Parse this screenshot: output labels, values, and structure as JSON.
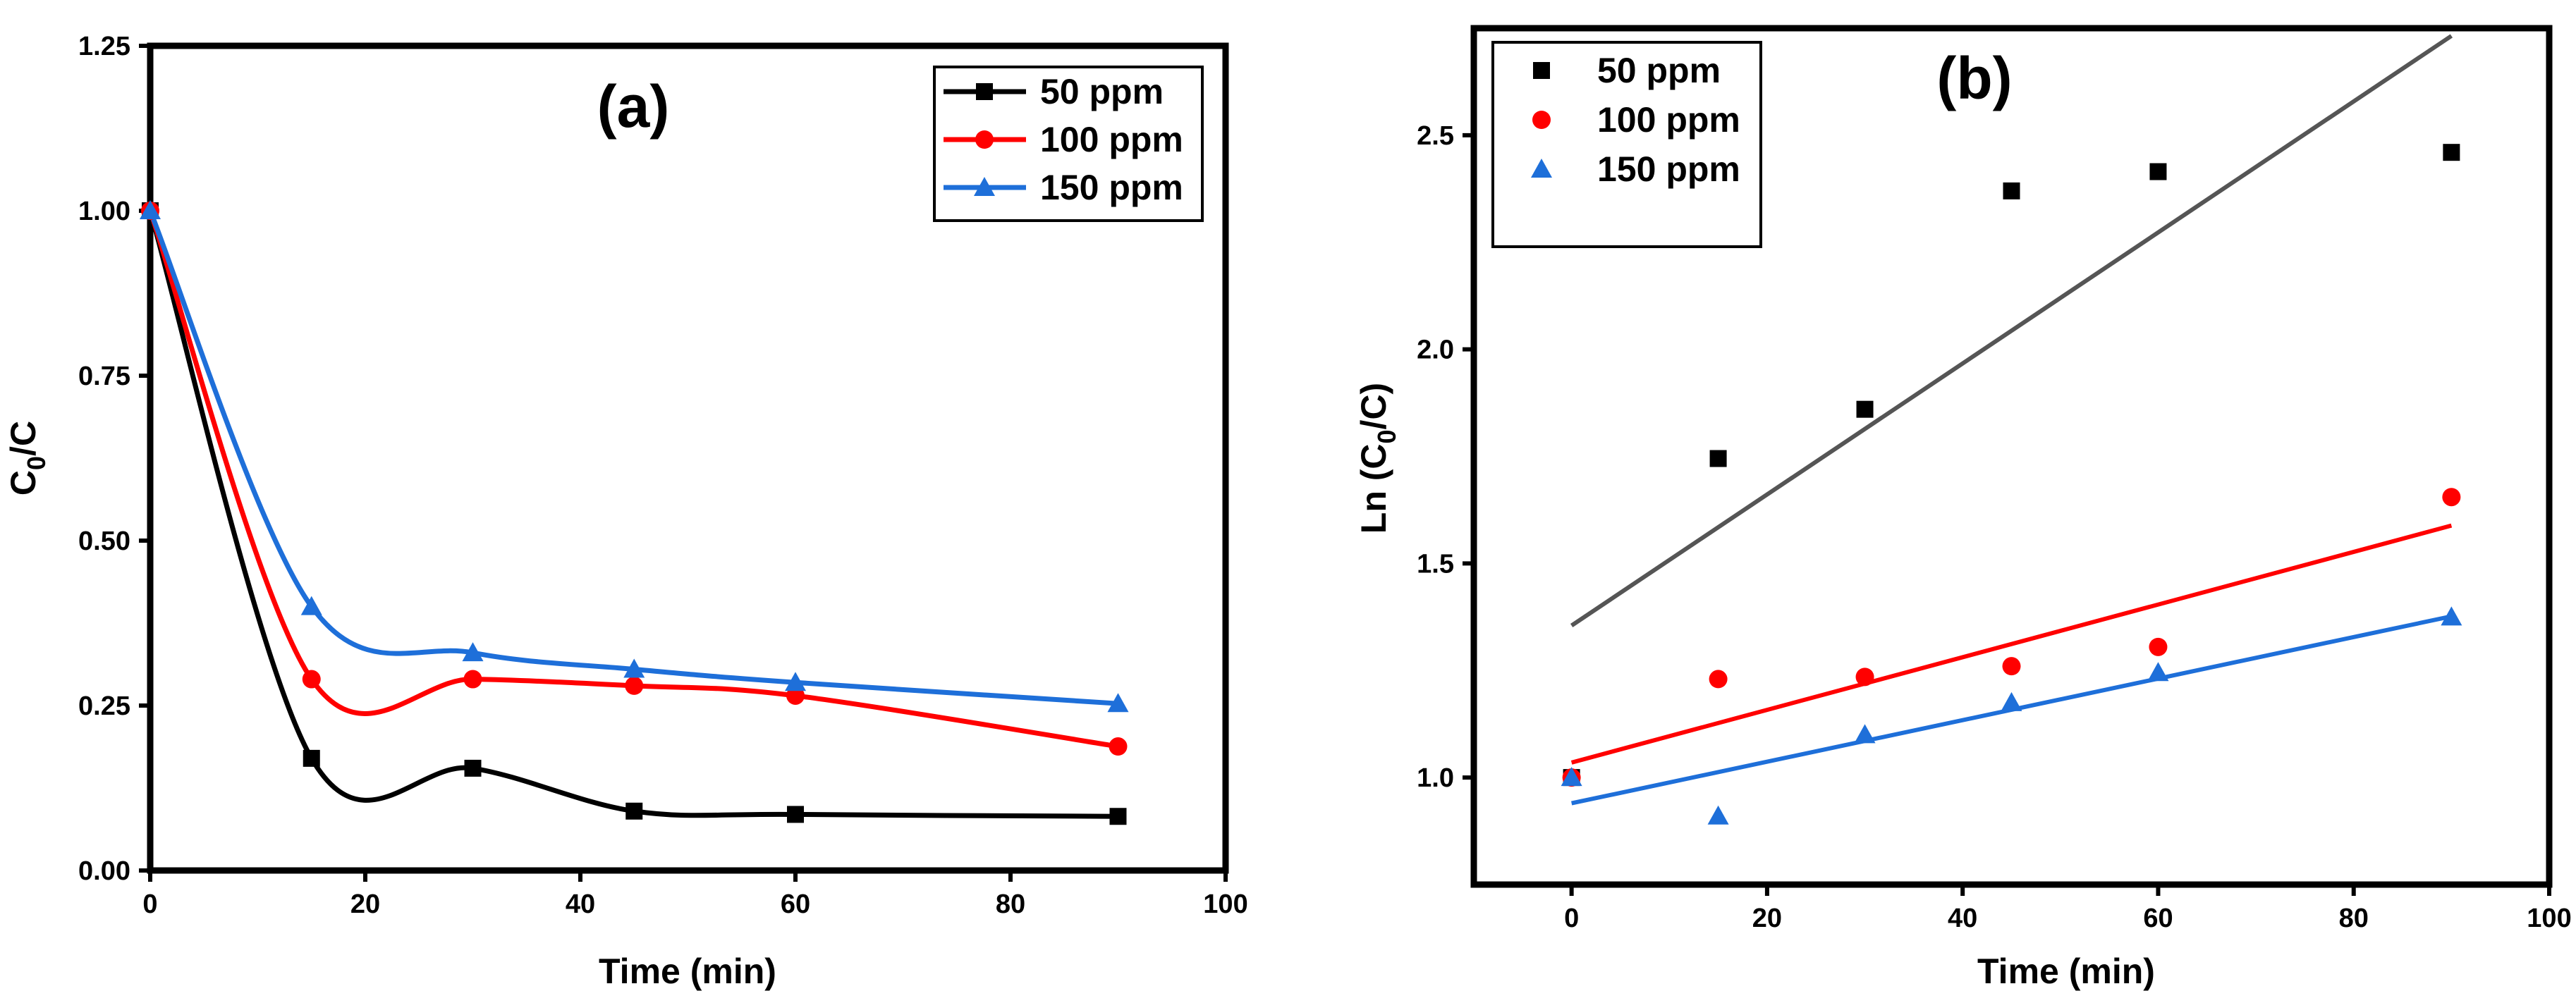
{
  "chart_data": [
    {
      "type": "line",
      "panel_label": "(a)",
      "xlabel": "Time (min)",
      "ylabel": "C0/C",
      "xlim": [
        0,
        100
      ],
      "ylim": [
        0,
        1.25
      ],
      "xticks": [
        0,
        20,
        40,
        60,
        80,
        100
      ],
      "yticks": [
        0.0,
        0.25,
        0.5,
        0.75,
        1.0,
        1.25
      ],
      "xtick_labels": [
        "0",
        "20",
        "40",
        "60",
        "80",
        "100"
      ],
      "ytick_labels": [
        "0.00",
        "0.25",
        "0.50",
        "0.75",
        "1.00",
        "1.25"
      ],
      "legend_position": "top-right",
      "x": [
        0,
        15,
        30,
        45,
        60,
        90
      ],
      "series": [
        {
          "name": "50 ppm",
          "color": "#000000",
          "marker": "square",
          "values": [
            1.0,
            0.17,
            0.155,
            0.09,
            0.085,
            0.082
          ]
        },
        {
          "name": "100 ppm",
          "color": "#ff0000",
          "marker": "circle",
          "values": [
            1.0,
            0.29,
            0.29,
            0.28,
            0.265,
            0.188
          ]
        },
        {
          "name": "150 ppm",
          "color": "#1e6fd9",
          "marker": "triangle",
          "values": [
            1.0,
            0.4,
            0.33,
            0.305,
            0.285,
            0.253
          ]
        }
      ]
    },
    {
      "type": "scatter",
      "panel_label": "(b)",
      "xlabel": "Time (min)",
      "ylabel": "Ln (C0/C)",
      "xlim": [
        -10,
        100
      ],
      "ylim": [
        0.75,
        2.75
      ],
      "xticks": [
        0,
        20,
        40,
        60,
        80,
        100
      ],
      "yticks": [
        1.0,
        1.5,
        2.0,
        2.5
      ],
      "xtick_labels": [
        "0",
        "20",
        "40",
        "60",
        "80",
        "100"
      ],
      "ytick_labels": [
        "1.0",
        "1.5",
        "2.0",
        "2.5"
      ],
      "legend_position": "top-left",
      "x": [
        0,
        15,
        30,
        45,
        60,
        90
      ],
      "series": [
        {
          "name": "50 ppm",
          "color": "#000000",
          "fit_color": "#555555",
          "marker": "square",
          "values": [
            1.0,
            1.745,
            1.86,
            2.37,
            2.415,
            2.46
          ],
          "fit": [
            1.355,
            0.0153
          ]
        },
        {
          "name": "100 ppm",
          "color": "#ff0000",
          "fit_color": "#ff0000",
          "marker": "circle",
          "values": [
            1.0,
            1.23,
            1.235,
            1.26,
            1.305,
            1.655
          ],
          "fit": [
            1.035,
            0.00615
          ]
        },
        {
          "name": "150 ppm",
          "color": "#1e6fd9",
          "fit_color": "#1e6fd9",
          "marker": "triangle",
          "values": [
            1.0,
            0.91,
            1.1,
            1.175,
            1.245,
            1.375
          ],
          "fit": [
            0.94,
            0.00485
          ]
        }
      ]
    }
  ]
}
